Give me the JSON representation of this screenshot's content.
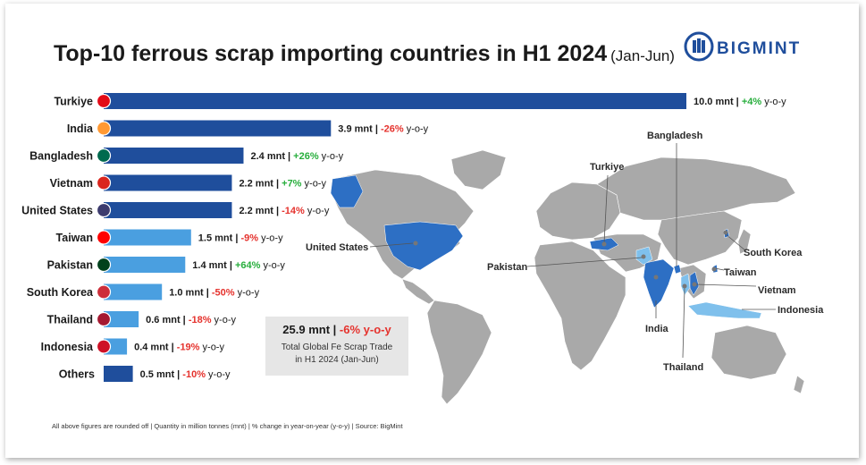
{
  "header": {
    "title": "Top-10 ferrous scrap importing countries in H1 2024",
    "subtitle": "(Jan-Jun)",
    "brand": "BIGMINT"
  },
  "summary": {
    "total": "25.9 mnt",
    "change": "-6% y-o-y",
    "line1": "Total Global Fe Scrap Trade",
    "line2": "in H1 2024 (Jan-Jun)"
  },
  "footnote": "All above figures are rounded off | Quantity in million tonnes (mnt) | % change in year-on-year (y-o-y) | Source: BigMint",
  "colors": {
    "dark_bar": "#1f4e9c",
    "light_bar": "#4a9fe0",
    "positive": "#27ae3c",
    "negative": "#e5322d",
    "map_land": "#a9a9a9",
    "map_highlight": "#2d6fc4"
  },
  "map_labels": [
    "Bangladesh",
    "Turkiye",
    "United States",
    "Pakistan",
    "South Korea",
    "Taiwan",
    "Vietnam",
    "Indonesia",
    "India",
    "Thailand"
  ],
  "chart_data": {
    "type": "bar",
    "orientation": "horizontal",
    "unit": "mnt",
    "categories": [
      "Turkiye",
      "India",
      "Bangladesh",
      "Vietnam",
      "United States",
      "Taiwan",
      "Pakistan",
      "South Korea",
      "Thailand",
      "Indonesia",
      "Others"
    ],
    "values": [
      10.0,
      3.9,
      2.4,
      2.2,
      2.2,
      1.5,
      1.4,
      1.0,
      0.6,
      0.4,
      0.5
    ],
    "value_labels": [
      "10.0 mnt",
      "3.9 mnt",
      "2.4 mnt",
      "2.2 mnt",
      "2.2 mnt",
      "1.5 mnt",
      "1.4 mnt",
      "1.0 mnt",
      "0.6 mnt",
      "0.4 mnt",
      "0.5 mnt"
    ],
    "yoy_change": [
      "+4%",
      "-26%",
      "+26%",
      "+7%",
      "-14%",
      "-9%",
      "+64%",
      "-50%",
      "-18%",
      "-19%",
      "-10%"
    ],
    "yoy_suffix": "y-o-y",
    "legend": "none",
    "grid": false
  }
}
